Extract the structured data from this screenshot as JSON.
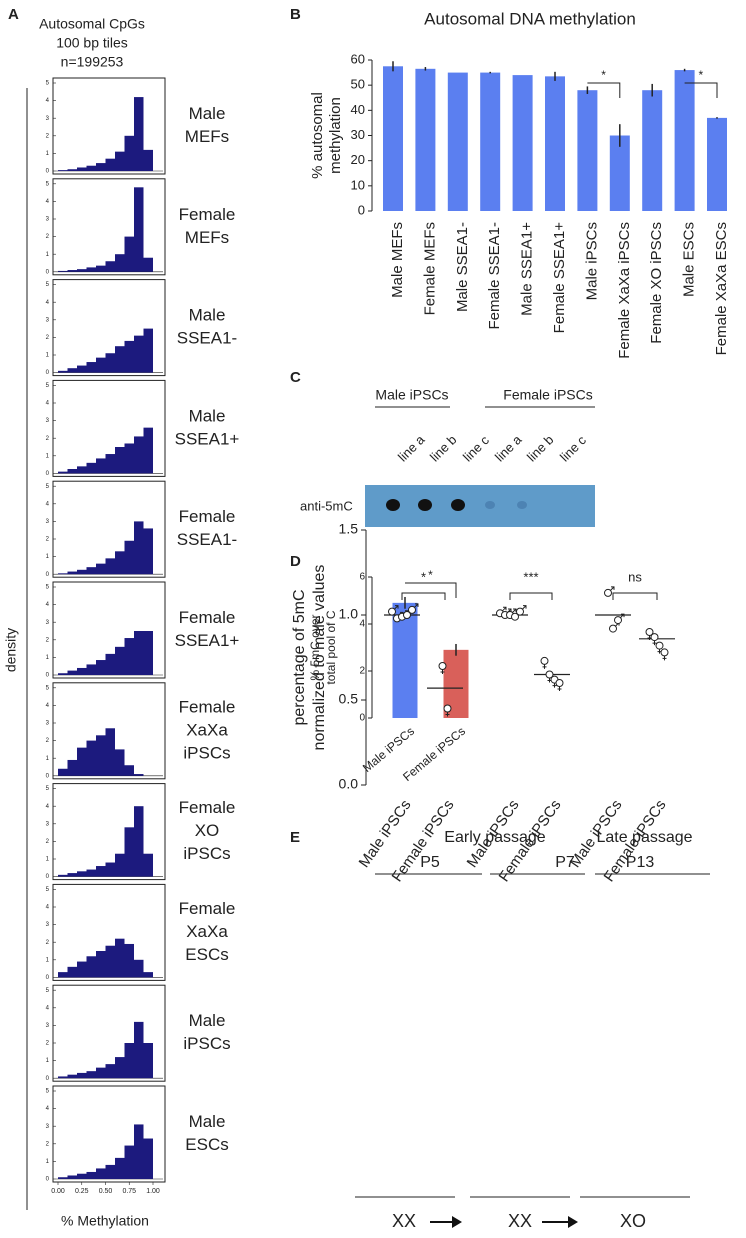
{
  "panel_labels": [
    "A",
    "B",
    "C",
    "D",
    "E"
  ],
  "panel_a": {
    "header": [
      "Autosomal CpGs",
      "100 bp tiles",
      "n=199253"
    ],
    "ylabel": "density",
    "xlabel": "% Methylation"
  },
  "blot": {
    "groups": [
      "Male iPSCs",
      "Female iPSCs"
    ],
    "lanes": [
      "line a",
      "line b",
      "line c",
      "line a",
      "line b",
      "line c"
    ],
    "antibody": "anti-5mC"
  },
  "chart_data": [
    {
      "type": "histogram",
      "label_lines": [
        "Male",
        "MEFs"
      ],
      "bins": [
        0,
        0.1,
        0.2,
        0.3,
        0.4,
        0.5,
        0.6,
        0.7,
        0.8,
        0.9,
        1
      ],
      "values": [
        0.05,
        0.1,
        0.2,
        0.3,
        0.45,
        0.7,
        1.1,
        2.0,
        4.2,
        1.2
      ],
      "color": "#1c1a7e",
      "xlim": [
        0,
        1
      ],
      "ylim": [
        0,
        5
      ],
      "yticks": [
        0,
        1,
        2,
        3,
        4,
        5
      ]
    },
    {
      "type": "histogram",
      "label_lines": [
        "Female",
        "MEFs"
      ],
      "bins": [
        0,
        0.1,
        0.2,
        0.3,
        0.4,
        0.5,
        0.6,
        0.7,
        0.8,
        0.9,
        1
      ],
      "values": [
        0.05,
        0.1,
        0.15,
        0.25,
        0.35,
        0.6,
        1.0,
        2.0,
        4.8,
        0.8
      ],
      "color": "#1c1a7e",
      "xlim": [
        0,
        1
      ],
      "ylim": [
        0,
        5
      ],
      "yticks": [
        0,
        1,
        2,
        3,
        4,
        5
      ]
    },
    {
      "type": "histogram",
      "label_lines": [
        "Male",
        "SSEA1-"
      ],
      "bins": [
        0,
        0.1,
        0.2,
        0.3,
        0.4,
        0.5,
        0.6,
        0.7,
        0.8,
        0.9,
        1
      ],
      "values": [
        0.1,
        0.25,
        0.4,
        0.6,
        0.85,
        1.1,
        1.5,
        1.8,
        2.1,
        2.5
      ],
      "color": "#1c1a7e",
      "xlim": [
        0,
        1
      ],
      "ylim": [
        0,
        5
      ],
      "yticks": [
        0,
        1,
        2,
        3,
        4,
        5
      ]
    },
    {
      "type": "histogram",
      "label_lines": [
        "Male",
        "SSEA1+"
      ],
      "bins": [
        0,
        0.1,
        0.2,
        0.3,
        0.4,
        0.5,
        0.6,
        0.7,
        0.8,
        0.9,
        1
      ],
      "values": [
        0.1,
        0.25,
        0.4,
        0.6,
        0.85,
        1.1,
        1.5,
        1.7,
        2.1,
        2.6
      ],
      "color": "#1c1a7e",
      "xlim": [
        0,
        1
      ],
      "ylim": [
        0,
        5
      ],
      "yticks": [
        0,
        1,
        2,
        3,
        4,
        5
      ]
    },
    {
      "type": "histogram",
      "label_lines": [
        "Female",
        "SSEA1-"
      ],
      "bins": [
        0,
        0.1,
        0.2,
        0.3,
        0.4,
        0.5,
        0.6,
        0.7,
        0.8,
        0.9,
        1
      ],
      "values": [
        0.05,
        0.15,
        0.25,
        0.4,
        0.6,
        0.9,
        1.3,
        1.9,
        3.0,
        2.6
      ],
      "color": "#1c1a7e",
      "xlim": [
        0,
        1
      ],
      "ylim": [
        0,
        5
      ],
      "yticks": [
        0,
        1,
        2,
        3,
        4,
        5
      ]
    },
    {
      "type": "histogram",
      "label_lines": [
        "Female",
        "SSEA1+"
      ],
      "bins": [
        0,
        0.1,
        0.2,
        0.3,
        0.4,
        0.5,
        0.6,
        0.7,
        0.8,
        0.9,
        1
      ],
      "values": [
        0.1,
        0.25,
        0.4,
        0.6,
        0.85,
        1.2,
        1.6,
        2.1,
        2.5,
        2.5
      ],
      "color": "#1c1a7e",
      "xlim": [
        0,
        1
      ],
      "ylim": [
        0,
        5
      ],
      "yticks": [
        0,
        1,
        2,
        3,
        4,
        5
      ]
    },
    {
      "type": "histogram",
      "label_lines": [
        "Female",
        "XaXa",
        "iPSCs"
      ],
      "bins": [
        0,
        0.1,
        0.2,
        0.3,
        0.4,
        0.5,
        0.6,
        0.7,
        0.8,
        0.9,
        1
      ],
      "values": [
        0.4,
        0.9,
        1.6,
        2.0,
        2.3,
        2.7,
        1.5,
        0.6,
        0.1,
        0
      ],
      "color": "#1c1a7e",
      "xlim": [
        0,
        1
      ],
      "ylim": [
        0,
        5
      ],
      "yticks": [
        0,
        1,
        2,
        3,
        4,
        5
      ]
    },
    {
      "type": "histogram",
      "label_lines": [
        "Female",
        "XO",
        "iPSCs"
      ],
      "bins": [
        0,
        0.1,
        0.2,
        0.3,
        0.4,
        0.5,
        0.6,
        0.7,
        0.8,
        0.9,
        1
      ],
      "values": [
        0.1,
        0.2,
        0.3,
        0.4,
        0.6,
        0.8,
        1.3,
        2.8,
        4.0,
        1.3
      ],
      "color": "#1c1a7e",
      "xlim": [
        0,
        1
      ],
      "ylim": [
        0,
        5
      ],
      "yticks": [
        0,
        1,
        2,
        3,
        4,
        5
      ]
    },
    {
      "type": "histogram",
      "label_lines": [
        "Female",
        "XaXa",
        "ESCs"
      ],
      "bins": [
        0,
        0.1,
        0.2,
        0.3,
        0.4,
        0.5,
        0.6,
        0.7,
        0.8,
        0.9,
        1
      ],
      "values": [
        0.3,
        0.6,
        0.9,
        1.2,
        1.5,
        1.8,
        2.2,
        1.9,
        1.0,
        0.3
      ],
      "color": "#1c1a7e",
      "xlim": [
        0,
        1
      ],
      "ylim": [
        0,
        5
      ],
      "yticks": [
        0,
        1,
        2,
        3,
        4,
        5
      ]
    },
    {
      "type": "histogram",
      "label_lines": [
        "Male",
        "iPSCs"
      ],
      "bins": [
        0,
        0.1,
        0.2,
        0.3,
        0.4,
        0.5,
        0.6,
        0.7,
        0.8,
        0.9,
        1
      ],
      "values": [
        0.1,
        0.2,
        0.3,
        0.4,
        0.6,
        0.8,
        1.2,
        2.0,
        3.2,
        2.0
      ],
      "color": "#1c1a7e",
      "xlim": [
        0,
        1
      ],
      "ylim": [
        0,
        5
      ],
      "yticks": [
        0,
        1,
        2,
        3,
        4,
        5
      ]
    },
    {
      "type": "histogram",
      "label_lines": [
        "Male",
        "ESCs"
      ],
      "bins": [
        0,
        0.1,
        0.2,
        0.3,
        0.4,
        0.5,
        0.6,
        0.7,
        0.8,
        0.9,
        1
      ],
      "values": [
        0.1,
        0.2,
        0.3,
        0.4,
        0.6,
        0.8,
        1.2,
        1.9,
        3.1,
        2.3
      ],
      "color": "#1c1a7e",
      "xlim": [
        0,
        1
      ],
      "ylim": [
        0,
        5
      ],
      "yticks": [
        0,
        1,
        2,
        3,
        4,
        5
      ],
      "xticks": [
        {
          "value": 0,
          "label": "0.00"
        },
        {
          "value": 0.25,
          "label": "0.25"
        },
        {
          "value": 0.5,
          "label": "0.50"
        },
        {
          "value": 0.75,
          "label": "0.75"
        },
        {
          "value": 1,
          "label": "1.00"
        }
      ]
    },
    {
      "type": "bar",
      "title": "Autosomal DNA methylation",
      "ylabel_lines": [
        "% autosomal",
        "methylation"
      ],
      "categories": [
        "Male MEFs",
        "Female MEFs",
        "Male SSEA1-",
        "Female SSEA1-",
        "Male SSEA1+",
        "Female SSEA1+",
        "Male iPSCs",
        "Female XaXa iPSCs",
        "Female XO iPSCs",
        "Male ESCs",
        "Female XaXa ESCs"
      ],
      "values": [
        57.5,
        56.5,
        55,
        55,
        54,
        53.5,
        48,
        30,
        48,
        56,
        37
      ],
      "errors": [
        2,
        0.7,
        0,
        0.3,
        0,
        1.8,
        1.5,
        4.5,
        2.5,
        0.5,
        0.3
      ],
      "color": "#5b7ff0",
      "ylim": [
        0,
        60
      ],
      "yticks": [
        0,
        10,
        20,
        30,
        40,
        50,
        60
      ],
      "significance": [
        {
          "label": "*",
          "pair": [
            "Male iPSCs",
            "Female XaXa iPSCs"
          ]
        },
        {
          "label": "*",
          "pair": [
            "Male ESCs",
            "Female XaXa ESCs"
          ]
        }
      ]
    },
    {
      "type": "bar",
      "ylabel_lines": [
        "% 5mC over",
        "total pool of C"
      ],
      "categories": [
        "Male iPSCs",
        "Female iPSCs"
      ],
      "values": [
        4.9,
        2.9
      ],
      "errors": [
        0.25,
        0.25
      ],
      "colors": [
        "#5b7ff0",
        "#d9605a"
      ],
      "ylim": [
        0,
        6
      ],
      "yticks": [
        0,
        2,
        4,
        6
      ],
      "significance": [
        {
          "label": "*",
          "pair": [
            "Male iPSCs",
            "Female iPSCs"
          ]
        }
      ]
    },
    {
      "type": "dot",
      "ylabel_lines": [
        "percentage of 5mC",
        "normalized to male values"
      ],
      "categories": [
        "Male iPSCs",
        "Female iPSCs",
        "Male iPSCs",
        "Female iPSCs",
        "Male iPSCs",
        "Female iPSCs"
      ],
      "points": [
        [
          1.02,
          0.98,
          0.99,
          1.0,
          1.03
        ],
        [
          0.7,
          0.45
        ],
        [
          1.01,
          1.0,
          1.0,
          0.99,
          1.02
        ],
        [
          0.73,
          0.65,
          0.62,
          0.6
        ],
        [
          1.13,
          0.92,
          0.97
        ],
        [
          0.9,
          0.87,
          0.82,
          0.78
        ]
      ],
      "means": [
        1.0,
        0.57,
        1.0,
        0.65,
        1.0,
        0.86
      ],
      "markers": [
        "♂",
        "♀",
        "♂",
        "♀",
        "♂",
        "♀"
      ],
      "ylim": [
        0,
        1.5
      ],
      "yticks": [
        {
          "value": 0,
          "label": "0.0"
        },
        0.5,
        {
          "value": 1,
          "label": "1.0"
        },
        1.5
      ],
      "passage_groups": [
        {
          "label": "Early passage",
          "passages": [
            "P5",
            "P7"
          ]
        },
        {
          "label": "Late passage",
          "passages": [
            "P13"
          ]
        }
      ],
      "comparisons": [
        "*",
        "***",
        "ns"
      ],
      "genotypes": [
        "XX",
        "XX",
        "XO"
      ]
    }
  ]
}
